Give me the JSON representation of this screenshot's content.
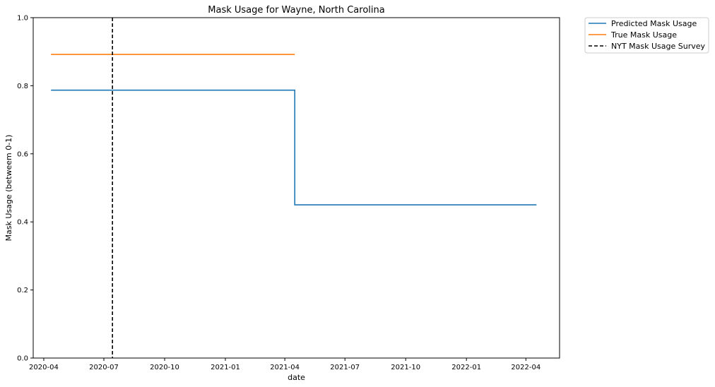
{
  "chart_data": {
    "type": "line",
    "title": "Mask Usage for Wayne, North Carolina",
    "xlabel": "date",
    "ylabel": "Mask Usage (betweem 0-1)",
    "ylim": [
      0,
      1
    ],
    "xlim": [
      "2020-03-16",
      "2022-05-22"
    ],
    "x_ticks": [
      "2020-04",
      "2020-07",
      "2020-10",
      "2021-01",
      "2021-04",
      "2021-07",
      "2021-10",
      "2022-01",
      "2022-04"
    ],
    "y_ticks": [
      "0.0",
      "0.2",
      "0.4",
      "0.6",
      "0.8",
      "1.0"
    ],
    "grid": false,
    "legend_position": "outside-top-right",
    "series": [
      {
        "name": "Predicted Mask Usage",
        "color": "#1f77b4",
        "style": "step",
        "points": [
          {
            "x": "2020-04-12",
            "y": 0.787
          },
          {
            "x": "2021-04-16",
            "y": 0.787
          },
          {
            "x": "2021-04-16",
            "y": 0.45
          },
          {
            "x": "2022-04-17",
            "y": 0.45
          }
        ]
      },
      {
        "name": "True Mask Usage",
        "color": "#ff7f0e",
        "style": "line",
        "points": [
          {
            "x": "2020-04-12",
            "y": 0.892
          },
          {
            "x": "2021-04-16",
            "y": 0.892
          }
        ]
      },
      {
        "name": "NYT Mask Usage Survey",
        "color": "#000000",
        "style": "vline-dashed",
        "x": "2020-07-14"
      }
    ]
  }
}
